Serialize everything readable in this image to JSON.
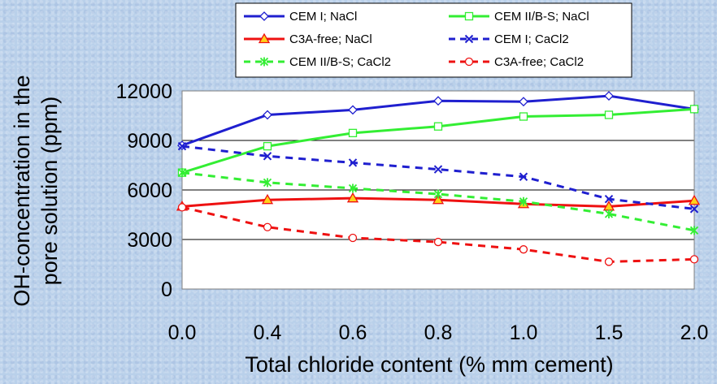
{
  "chart_data": {
    "type": "line",
    "x_categories": [
      "0.0",
      "0.4",
      "0.6",
      "0.8",
      "1.0",
      "1.5",
      "2.0"
    ],
    "xlabel": "Total chloride content (% mm cement)",
    "ylabel_line1": "OH-concentration in the",
    "ylabel_line2": "pore solution (ppm)",
    "ylim": [
      0,
      12000
    ],
    "yticks": [
      "0",
      "3000",
      "6000",
      "9000",
      "12000"
    ],
    "ytick_values": [
      0,
      3000,
      6000,
      9000,
      12000
    ],
    "grid": "horizontal",
    "legend_position": "top",
    "series": [
      {
        "name": "CEM I; NaCl",
        "values": [
          8700,
          10550,
          10850,
          11400,
          11350,
          11700,
          10900
        ],
        "color": "#1f1fcf",
        "dash": "solid",
        "marker": "diamond"
      },
      {
        "name": "CEM II/B-S; NaCl",
        "values": [
          7050,
          8650,
          9450,
          9850,
          10450,
          10550,
          10900
        ],
        "color": "#33ee33",
        "dash": "solid",
        "marker": "square"
      },
      {
        "name": "C3A-free; NaCl",
        "values": [
          5000,
          5400,
          5500,
          5400,
          5150,
          5000,
          5350
        ],
        "color": "#ee1111",
        "dash": "solid",
        "marker": "triangle"
      },
      {
        "name": "CEM I; CaCl2",
        "values": [
          8650,
          8050,
          7650,
          7250,
          6800,
          5450,
          4850
        ],
        "color": "#1f1fcf",
        "dash": "dashed",
        "marker": "x"
      },
      {
        "name": "CEM II/B-S; CaCl2",
        "values": [
          7050,
          6450,
          6100,
          5750,
          5300,
          4550,
          3550
        ],
        "color": "#33ee33",
        "dash": "dashed",
        "marker": "star"
      },
      {
        "name": "C3A-free; CaCl2",
        "values": [
          4950,
          3750,
          3100,
          2850,
          2400,
          1650,
          1800
        ],
        "color": "#ee1111",
        "dash": "dashed",
        "marker": "circle"
      }
    ]
  }
}
